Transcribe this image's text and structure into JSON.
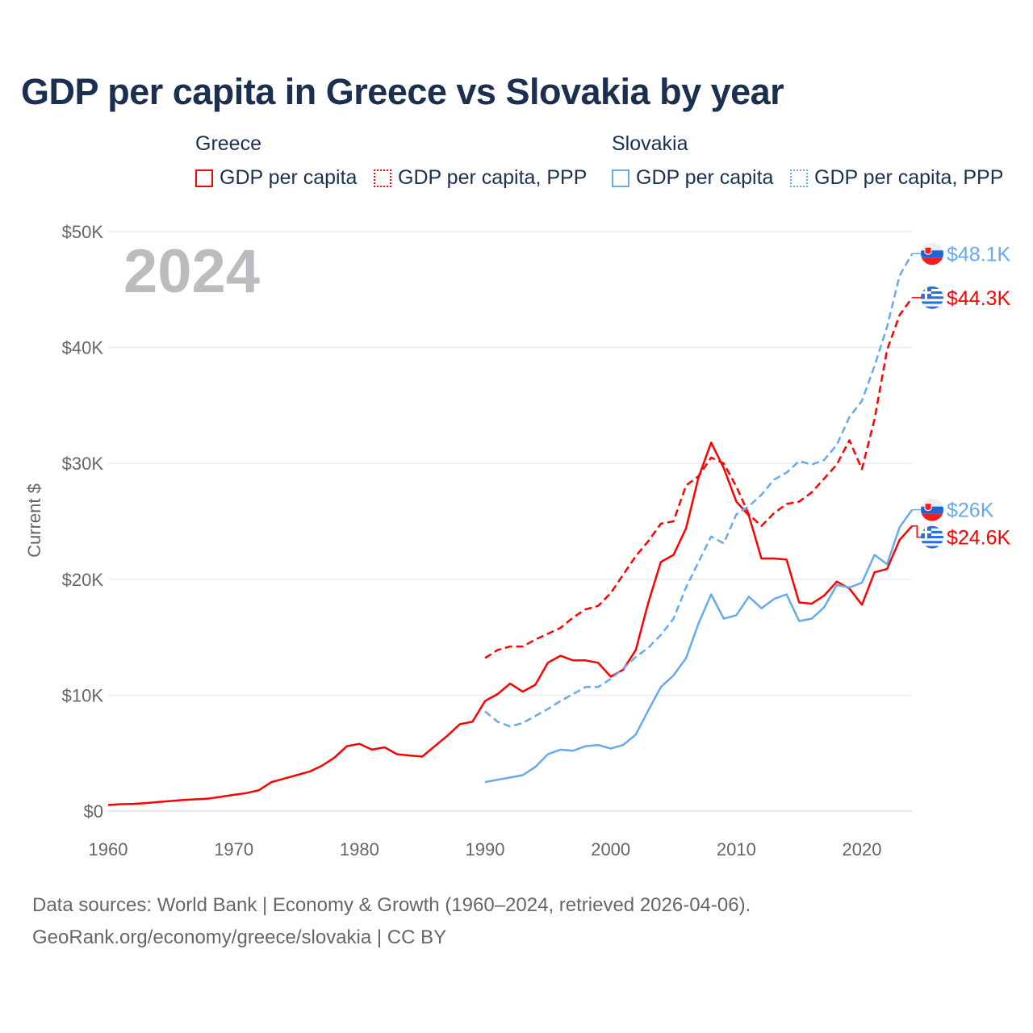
{
  "chart_data": {
    "type": "line",
    "title": "GDP per capita in Greece vs Slovakia by year",
    "ylabel": "Current $",
    "xlabel": "",
    "xlim": [
      1960,
      2024
    ],
    "ylim": [
      0,
      50000
    ],
    "x_ticks": [
      "1960",
      "1970",
      "1980",
      "1990",
      "2000",
      "2010",
      "2020"
    ],
    "y_ticks": [
      "$0",
      "$10K",
      "$20K",
      "$30K",
      "$40K",
      "$50K"
    ],
    "grid": true,
    "year_watermark": "2024",
    "legend": {
      "placement": "top",
      "groups": [
        {
          "name": "Greece",
          "items": [
            "GDP per capita",
            "GDP per capita, PPP"
          ]
        },
        {
          "name": "Slovakia",
          "items": [
            "GDP per capita",
            "GDP per capita, PPP"
          ]
        }
      ]
    },
    "series": [
      {
        "name": "Greece GDP per capita",
        "country": "Greece",
        "color": "#ff0000",
        "dashed": false,
        "end_label": "$24.6K",
        "flag": "greece-flag",
        "start": 1960,
        "values": [
          520,
          590,
          620,
          690,
          780,
          870,
          960,
          1020,
          1080,
          1230,
          1400,
          1550,
          1800,
          2500,
          2800,
          3100,
          3400,
          3900,
          4600,
          5600,
          5800,
          5300,
          5500,
          4900,
          4800,
          4700,
          5600,
          6500,
          7500,
          7700,
          9500,
          10100,
          11000,
          10300,
          10900,
          12800,
          13400,
          13000,
          13000,
          12800,
          11600,
          12200,
          13900,
          18000,
          21500,
          22100,
          24400,
          28800,
          31800,
          29600,
          26700,
          25500,
          21800,
          21800,
          21700,
          18000,
          17900,
          18600,
          19800,
          19200,
          17800,
          20600,
          20900,
          23400,
          24600
        ]
      },
      {
        "name": "Greece GDP per capita, PPP",
        "country": "Greece",
        "color": "#ff0000",
        "dashed": true,
        "end_label": "$44.3K",
        "flag": "greece-flag",
        "start": 1990,
        "values": [
          13200,
          13900,
          14200,
          14200,
          14800,
          15300,
          15800,
          16700,
          17400,
          17700,
          18800,
          20400,
          22000,
          23300,
          24800,
          25000,
          28100,
          28900,
          30500,
          30000,
          28000,
          25600,
          24600,
          25700,
          26500,
          26700,
          27500,
          28700,
          29900,
          32000,
          29500,
          33800,
          39800,
          42800,
          44300
        ]
      },
      {
        "name": "Slovakia GDP per capita",
        "country": "Slovakia",
        "color": "#66aaee",
        "dashed": false,
        "end_label": "$26K",
        "flag": "slovakia-flag",
        "start": 1990,
        "values": [
          2500,
          2700,
          2900,
          3100,
          3800,
          4900,
          5300,
          5200,
          5600,
          5700,
          5400,
          5700,
          6600,
          8700,
          10700,
          11700,
          13200,
          16200,
          18700,
          16600,
          16900,
          18500,
          17500,
          18300,
          18700,
          16400,
          16600,
          17600,
          19500,
          19300,
          19700,
          22100,
          21300,
          24500,
          26000
        ]
      },
      {
        "name": "Slovakia GDP per capita, PPP",
        "country": "Slovakia",
        "color": "#66aaee",
        "dashed": true,
        "end_label": "$48.1K",
        "flag": "slovakia-flag",
        "start": 1990,
        "values": [
          8600,
          7700,
          7300,
          7600,
          8200,
          8800,
          9500,
          10100,
          10700,
          10700,
          11400,
          12300,
          13300,
          14100,
          15200,
          16600,
          19300,
          21500,
          23700,
          23100,
          25600,
          26300,
          27300,
          28600,
          29200,
          30200,
          29900,
          30300,
          31600,
          34000,
          35400,
          38400,
          41800,
          46200,
          48100
        ]
      }
    ]
  },
  "source": {
    "line1": "Data sources: World Bank | Economy & Growth (1960–2024, retrieved 2026-04-06).",
    "line2": "GeoRank.org/economy/greece/slovakia | CC BY"
  }
}
